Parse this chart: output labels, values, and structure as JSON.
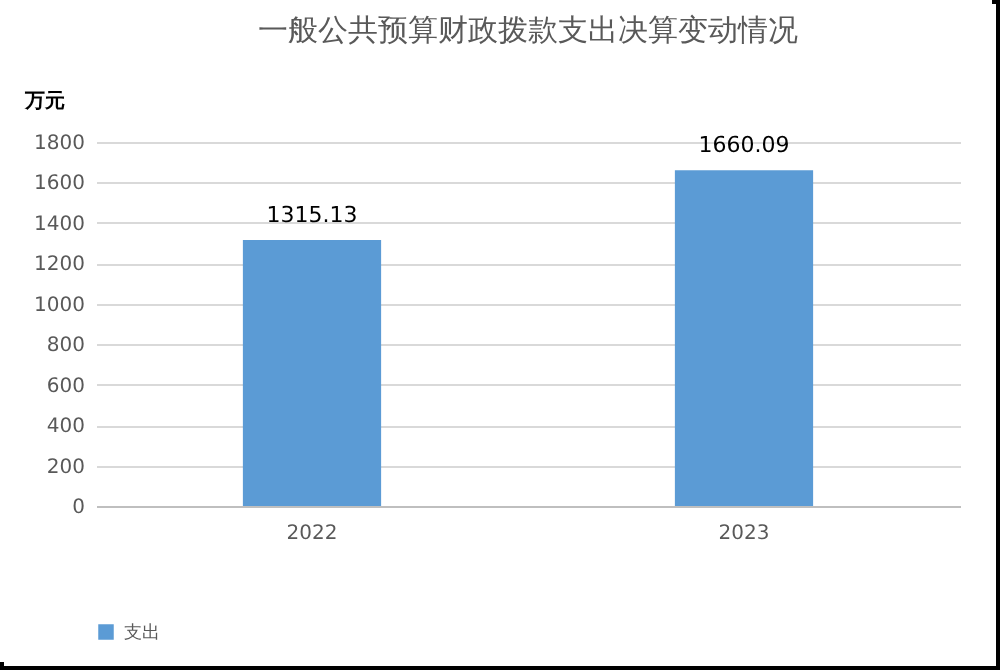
{
  "chart_data": {
    "type": "bar",
    "title": "一般公共预算财政拨款支出决算变动情况",
    "ylabel": "万元",
    "categories": [
      "2022",
      "2023"
    ],
    "series": [
      {
        "name": "支出",
        "color": "#5b9bd5",
        "values": [
          1315.13,
          1660.09
        ]
      }
    ],
    "ylim": [
      0,
      1800
    ],
    "yticks": [
      0,
      200,
      400,
      600,
      800,
      1000,
      1200,
      1400,
      1600,
      1800
    ],
    "grid": "y",
    "legend": "bottom",
    "data_labels": true
  }
}
